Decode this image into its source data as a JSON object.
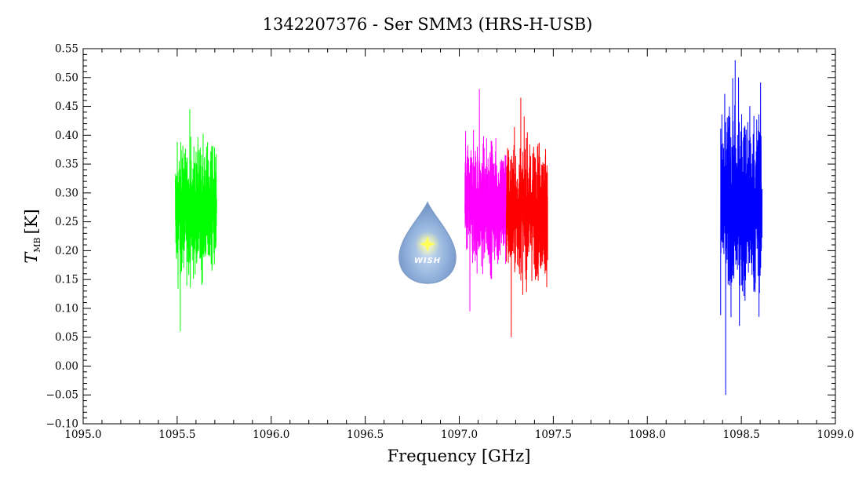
{
  "chart_data": {
    "type": "line",
    "title": "1342207376 - Ser SMM3 (HRS-H-USB)",
    "xlabel": "Frequency [GHz]",
    "ylabel_main": "T",
    "ylabel_sub": "MB",
    "ylabel_unit": "[K]",
    "xlim": [
      1095.0,
      1099.0
    ],
    "ylim": [
      -0.1,
      0.55
    ],
    "x_ticks": [
      1095.0,
      1095.5,
      1096.0,
      1096.5,
      1097.0,
      1097.5,
      1098.0,
      1098.5,
      1099.0
    ],
    "x_tick_labels": [
      "1095.0",
      "1095.5",
      "1096.0",
      "1096.5",
      "1097.0",
      "1097.5",
      "1098.0",
      "1098.5",
      "1099.0"
    ],
    "y_ticks": [
      -0.1,
      -0.05,
      0.0,
      0.05,
      0.1,
      0.15,
      0.2,
      0.25,
      0.3,
      0.35,
      0.4,
      0.45,
      0.5,
      0.55
    ],
    "y_tick_labels": [
      "−0.10",
      "−0.05",
      "0.00",
      "0.05",
      "0.10",
      "0.15",
      "0.20",
      "0.25",
      "0.30",
      "0.35",
      "0.40",
      "0.45",
      "0.50",
      "0.55"
    ],
    "grid": false,
    "series": [
      {
        "color": "#00ff00",
        "x_range": [
          1095.49,
          1095.71
        ],
        "center": 0.27,
        "min": 0.06,
        "max": 0.445
      },
      {
        "color": "#ff00ff",
        "x_range": [
          1097.03,
          1097.25
        ],
        "center": 0.28,
        "min": 0.095,
        "max": 0.48
      },
      {
        "color": "#ff0000",
        "x_range": [
          1097.25,
          1097.47
        ],
        "center": 0.27,
        "min": 0.05,
        "max": 0.465
      },
      {
        "color": "#0000ff",
        "x_range": [
          1098.39,
          1098.61
        ],
        "center": 0.28,
        "min": -0.05,
        "max": 0.53
      }
    ]
  },
  "logo": {
    "text": "WISH"
  }
}
